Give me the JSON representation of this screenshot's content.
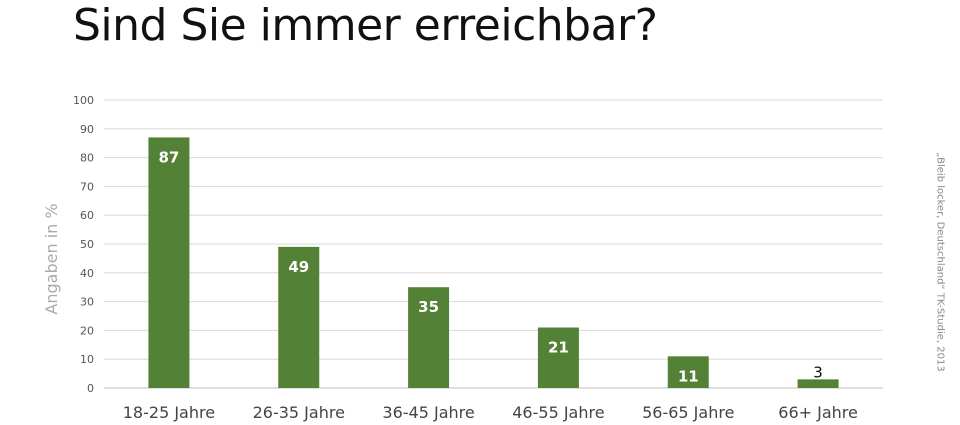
{
  "chart_data": {
    "type": "bar",
    "title": "Sind Sie immer erreichbar?",
    "xlabel": "",
    "ylabel": "Angaben in %",
    "categories": [
      "18-25 Jahre",
      "26-35 Jahre",
      "36-45 Jahre",
      "46-55 Jahre",
      "56-65 Jahre",
      "66+ Jahre"
    ],
    "values": [
      87,
      49,
      35,
      21,
      11,
      3
    ],
    "data_labels": [
      "87",
      "49",
      "35",
      "21",
      "11",
      "3"
    ],
    "ylim": [
      0,
      100
    ],
    "yticks": [
      0,
      10,
      20,
      30,
      40,
      50,
      60,
      70,
      80,
      90,
      100
    ],
    "ytick_labels": [
      "0",
      "10",
      "20",
      "30",
      "40",
      "50",
      "60",
      "70",
      "80",
      "90",
      "100"
    ],
    "grid": true,
    "legend": "none",
    "bar_color": "#538135",
    "source_note": "„Bleib locker, Deutschland“ TK-Studie, 2013"
  }
}
